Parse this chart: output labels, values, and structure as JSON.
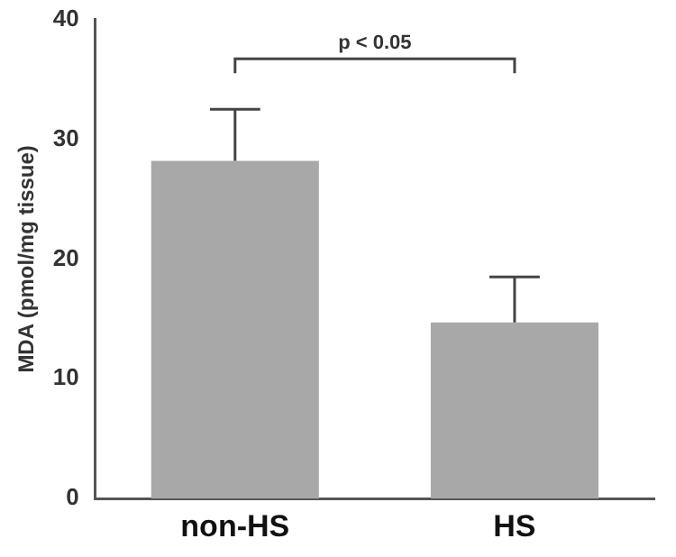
{
  "chart_data": {
    "type": "bar",
    "ylabel": "MDA (pmol/mg tissue)",
    "categories": [
      "non-HS",
      "HS"
    ],
    "values": [
      28.2,
      14.7
    ],
    "color": "#a8a8a8",
    "errors": [
      [
        28.2,
        32.5
      ],
      [
        14.7,
        18.5
      ]
    ],
    "ylim": [
      0,
      40
    ],
    "yticks": [
      0,
      10,
      20,
      30,
      40
    ],
    "grid": false,
    "legend": false,
    "annotations": [
      "p < 0.05"
    ]
  }
}
